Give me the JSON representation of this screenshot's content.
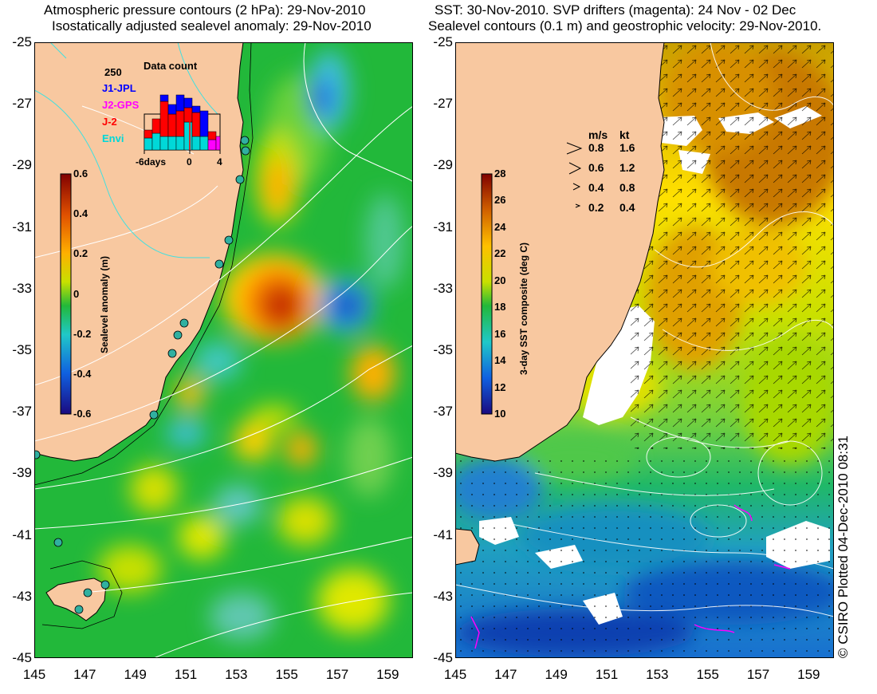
{
  "left_panel": {
    "title_line1": "Atmospheric pressure contours (2 hPa): 29-Nov-2010",
    "title_line2": "Isostatically adjusted sealevel anomaly: 29-Nov-2010",
    "colorbar": {
      "label": "Sealevel anomaly (m)",
      "ticks": [
        "0.6",
        "0.4",
        "0.2",
        "0",
        "-0.2",
        "-0.4",
        "-0.6"
      ]
    },
    "data_count": {
      "title": "Data count",
      "ymax_label": "250",
      "series": [
        {
          "name": "J1-JPL",
          "color": "#0000ff"
        },
        {
          "name": "J2-GPS",
          "color": "#ff00ff"
        },
        {
          "name": "J-2",
          "color": "#ff0000"
        },
        {
          "name": "Envi",
          "color": "#00d8d8"
        }
      ],
      "x_ticks": [
        "-6days",
        "0",
        "4"
      ]
    }
  },
  "right_panel": {
    "title_line1": "SST: 30-Nov-2010. SVP drifters (magenta): 24 Nov - 02 Dec",
    "title_line2": "Sealevel contours (0.1 m) and geostrophic velocity: 29-Nov-2010.",
    "colorbar": {
      "label": "3-day SST composite (deg C)",
      "ticks": [
        "28",
        "26",
        "24",
        "22",
        "20",
        "18",
        "16",
        "14",
        "12",
        "10"
      ]
    },
    "velocity_legend": {
      "header_ms": "m/s",
      "header_kt": "kt",
      "rows": [
        {
          "ms": "0.8",
          "kt": "1.6"
        },
        {
          "ms": "0.6",
          "kt": "1.2"
        },
        {
          "ms": "0.4",
          "kt": "0.8"
        },
        {
          "ms": "0.2",
          "kt": "0.4"
        }
      ]
    }
  },
  "axes": {
    "y_ticks": [
      "-25",
      "-27",
      "-29",
      "-31",
      "-33",
      "-35",
      "-37",
      "-39",
      "-41",
      "-43",
      "-45"
    ],
    "x_ticks": [
      "145",
      "147",
      "149",
      "151",
      "153",
      "155",
      "157",
      "159"
    ]
  },
  "credit": "© CSIRO Plotted 04-Dec-2010 08:31",
  "colors": {
    "land": "#f8c8a0",
    "ocean_green": "#22b83a",
    "coast_line": "#000000",
    "contour": "#ffffff"
  }
}
